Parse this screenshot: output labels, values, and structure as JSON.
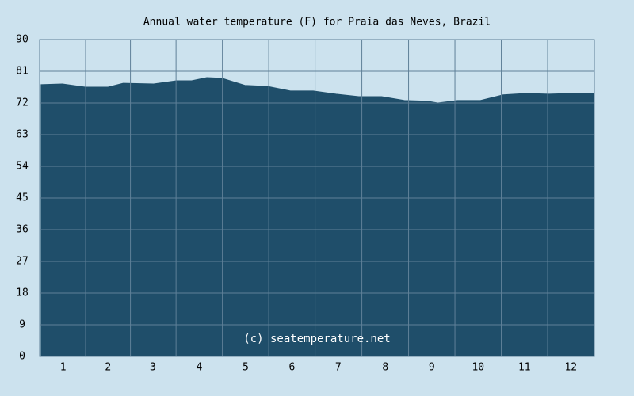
{
  "chart_data": {
    "type": "area",
    "title": "Annual water temperature (F) for Praia das Neves, Brazil",
    "annotation": "(c) seatemperature.net",
    "x": [
      1,
      15,
      30,
      45,
      55,
      75,
      90,
      100,
      110,
      120,
      135,
      150,
      165,
      180,
      195,
      210,
      225,
      240,
      255,
      262,
      275,
      290,
      305,
      320,
      335,
      350,
      365
    ],
    "values": [
      77.2,
      77.4,
      76.5,
      76.5,
      77.6,
      77.4,
      78.3,
      78.3,
      79.2,
      79,
      77,
      76.7,
      75.4,
      75.4,
      74.5,
      73.8,
      73.8,
      72.7,
      72.5,
      72,
      72.7,
      72.7,
      74.3,
      74.7,
      74.5,
      74.7,
      74.7
    ],
    "color": "#1f4e6a",
    "xlim": [
      0,
      365
    ],
    "xticks": [
      {
        "value": 15.5,
        "label": "1"
      },
      {
        "value": 45,
        "label": "2"
      },
      {
        "value": 74.5,
        "label": "3"
      },
      {
        "value": 105,
        "label": "4"
      },
      {
        "value": 135.5,
        "label": "5"
      },
      {
        "value": 166,
        "label": "6"
      },
      {
        "value": 196.5,
        "label": "7"
      },
      {
        "value": 227.5,
        "label": "8"
      },
      {
        "value": 258,
        "label": "9"
      },
      {
        "value": 288.5,
        "label": "10"
      },
      {
        "value": 319,
        "label": "11"
      },
      {
        "value": 349.5,
        "label": "12"
      }
    ],
    "ylim": [
      0,
      90
    ],
    "yticks": [
      0,
      9,
      18,
      27,
      36,
      45,
      54,
      63,
      72,
      81,
      90
    ],
    "grid": true
  }
}
